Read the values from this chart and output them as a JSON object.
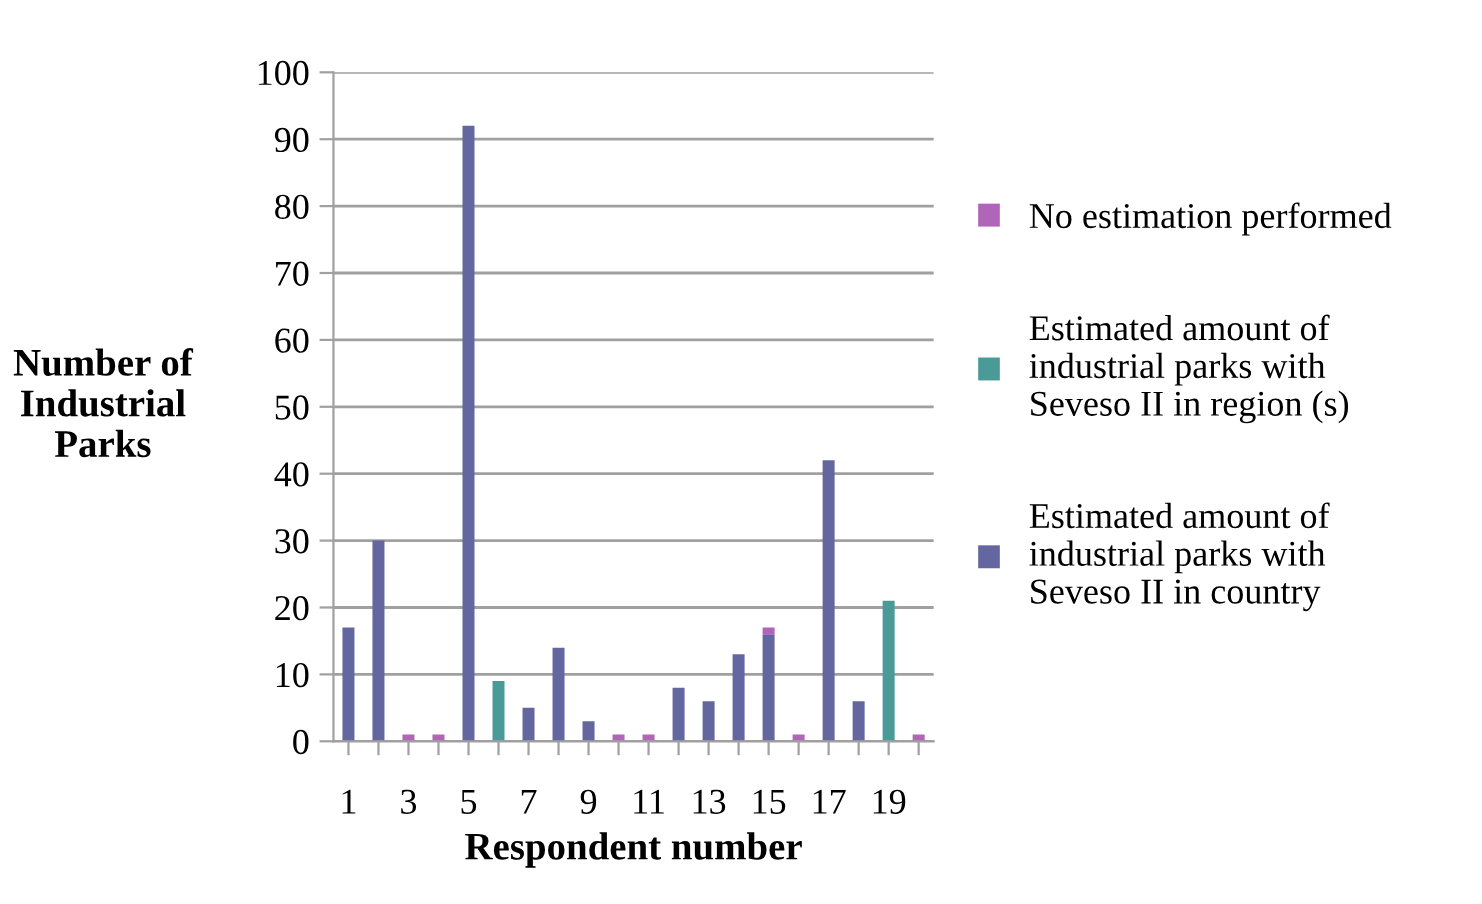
{
  "chart_data": {
    "type": "bar",
    "stacked": true,
    "xlabel": "Respondent number",
    "ylabel": "Number of\nIndustrial\nParks",
    "categories": [
      "1",
      null,
      "3",
      null,
      "5",
      null,
      "7",
      null,
      "9",
      null,
      "11",
      null,
      "13",
      null,
      "15",
      null,
      "17",
      null,
      "19",
      null
    ],
    "series": [
      {
        "name": "Estimated amount of\nindustrial parks with\nSeveso II in country",
        "color": "#6466a0",
        "values": [
          17,
          30,
          0,
          0,
          92,
          0,
          5,
          14,
          3,
          0,
          0,
          8,
          6,
          13,
          16,
          0,
          42,
          6,
          0,
          0
        ]
      },
      {
        "name": "Estimated amount of\nindustrial parks with\nSeveso II in region (s)",
        "color": "#4a9a98",
        "values": [
          0,
          0,
          0,
          0,
          0,
          9,
          0,
          0,
          0,
          0,
          0,
          0,
          0,
          0,
          0,
          0,
          0,
          0,
          21,
          0
        ]
      },
      {
        "name": "No estimation performed",
        "color": "#b165b8",
        "values": [
          0,
          0,
          1,
          1,
          0,
          0,
          0,
          0,
          0,
          1,
          1,
          0,
          0,
          0,
          1,
          1,
          0,
          0,
          0,
          1
        ]
      }
    ],
    "ylim": [
      0,
      100
    ],
    "yticks": [
      0,
      10,
      20,
      30,
      40,
      50,
      60,
      70,
      80,
      90,
      100
    ],
    "grid": "y",
    "legend": "right"
  }
}
